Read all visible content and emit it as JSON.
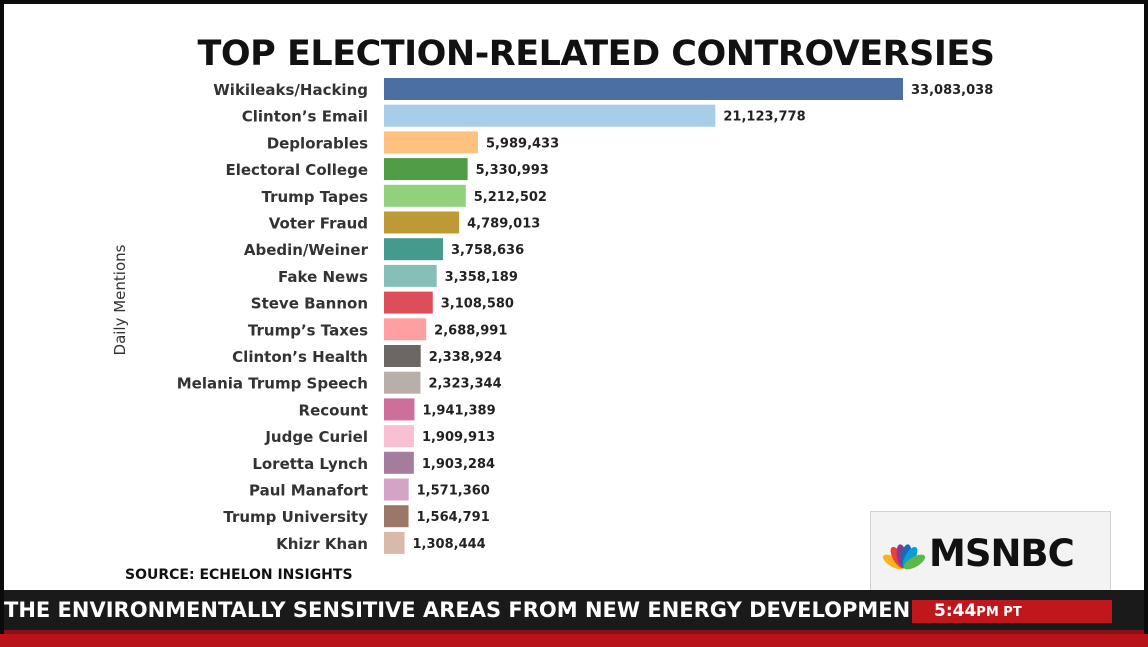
{
  "chart_data": {
    "type": "bar",
    "orientation": "horizontal",
    "title": "TOP ELECTION-RELATED CONTROVERSIES",
    "ylabel": "Daily Mentions",
    "xlim": [
      0,
      35000000
    ],
    "grid": false,
    "legend": "none",
    "categories": [
      "Wikileaks/Hacking",
      "Clinton’s Email",
      "Deplorables",
      "Electoral College",
      "Trump Tapes",
      "Voter Fraud",
      "Abedin/Weiner",
      "Fake News",
      "Steve Bannon",
      "Trump’s Taxes",
      "Clinton’s Health",
      "Melania Trump Speech",
      "Recount",
      "Judge Curiel",
      "Loretta Lynch",
      "Paul Manafort",
      "Trump University",
      "Khizr Khan"
    ],
    "values": [
      33083038,
      21123778,
      5989433,
      5330993,
      5212502,
      4789013,
      3758636,
      3358189,
      3108580,
      2688991,
      2338924,
      2323344,
      1941389,
      1909913,
      1903284,
      1571360,
      1564791,
      1308444
    ],
    "value_labels": [
      "33,083,038",
      "21,123,778",
      "5,989,433",
      "5,330,993",
      "5,212,502",
      "4,789,013",
      "3,758,636",
      "3,358,189",
      "3,108,580",
      "2,688,991",
      "2,338,924",
      "2,323,344",
      "1,941,389",
      "1,909,913",
      "1,903,284",
      "1,571,360",
      "1,564,791",
      "1,308,444"
    ],
    "colors": [
      "#4a6fa0",
      "#a7cde8",
      "#ffc080",
      "#4f9e46",
      "#91d17e",
      "#bd9a35",
      "#459a8e",
      "#85c0b6",
      "#dd4d5a",
      "#ff9fa2",
      "#6c6665",
      "#b8afab",
      "#cd6f98",
      "#f9bfd2",
      "#a47c9e",
      "#d3a4c6",
      "#9a7767",
      "#d9b9a9"
    ],
    "source": "SOURCE: ECHELON INSIGHTS"
  },
  "network": {
    "logo_text": "MSNBC",
    "logo_colors": [
      "#f7b51b",
      "#ef3e35",
      "#833c96",
      "#1d68b2",
      "#069fd7",
      "#5fb64a"
    ]
  },
  "ticker": {
    "text": "THE ENVIRONMENTALLY SENSITIVE AREAS FROM NEW ENERGY DEVELOPMENT",
    "time": "5:44",
    "time_suffix": "PM PT"
  }
}
